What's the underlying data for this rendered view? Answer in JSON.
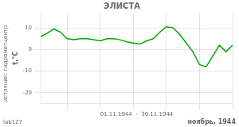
{
  "chart_data": {
    "type": "line",
    "title": "ЭЛИСТА",
    "ylabel": "t,°C",
    "xlabel": "01.11.1944  -  30.11.1944",
    "annotations": [
      "ноябрь, 1944",
      "источник: гидрометцентр",
      "lab127"
    ],
    "x": [
      1,
      2,
      3,
      4,
      5,
      6,
      7,
      8,
      9,
      10,
      11,
      12,
      13,
      14,
      15,
      16,
      17,
      18,
      19,
      20,
      21,
      22,
      23,
      24,
      25,
      26,
      27,
      28,
      29,
      30
    ],
    "values": [
      6,
      7.5,
      9.5,
      8,
      5,
      4.5,
      5,
      5,
      4.5,
      4,
      5,
      5,
      4.5,
      3.5,
      3,
      2.5,
      4,
      5,
      8,
      10.5,
      10,
      7,
      3,
      -1,
      -7,
      -8,
      -3,
      2,
      -1,
      2
    ],
    "color": "#00aa00",
    "xlim": [
      1,
      30
    ],
    "xticks": [
      5,
      10,
      15,
      20,
      25,
      30
    ],
    "ylim": [
      -25,
      17
    ],
    "yticks": [
      -20,
      -10,
      0,
      10
    ],
    "grid": true,
    "tick_labels": "y"
  }
}
